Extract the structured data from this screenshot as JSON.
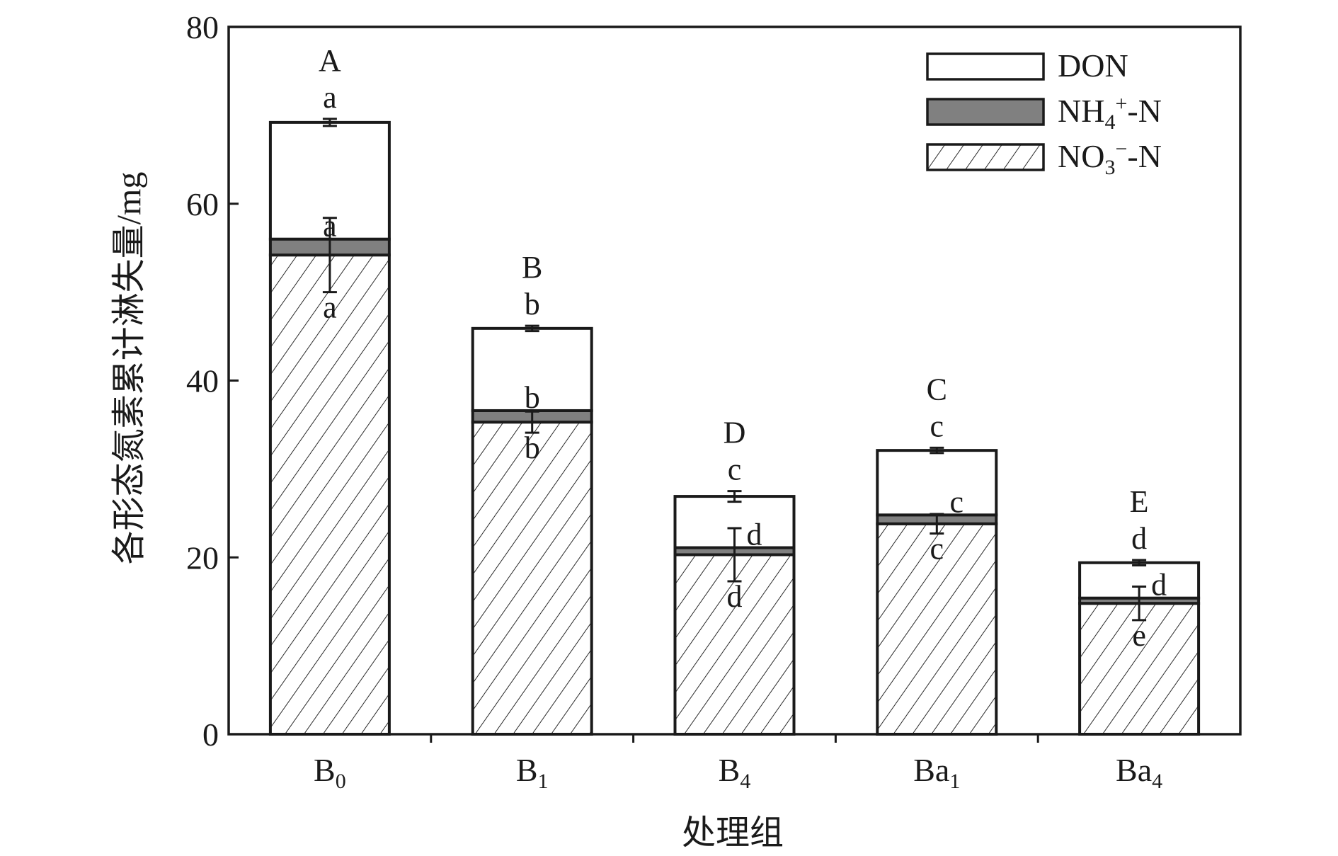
{
  "chart_data": {
    "type": "bar",
    "stacked": true,
    "xlabel": "处理组",
    "ylabel": "各形态氮素累计淋失量/mg",
    "ylim": [
      0,
      80
    ],
    "yticks": [
      0,
      20,
      40,
      60,
      80
    ],
    "grid": false,
    "legend_position": "top-right",
    "categories": [
      {
        "base": "B",
        "sub": "0"
      },
      {
        "base": "B",
        "sub": "1"
      },
      {
        "base": "B",
        "sub": "4"
      },
      {
        "base": "Ba",
        "sub": "1"
      },
      {
        "base": "Ba",
        "sub": "4"
      }
    ],
    "series": [
      {
        "key": "no3",
        "legend": {
          "pre": "NO",
          "sub": "3",
          "sup": "−",
          "post": "-N"
        },
        "fill": "hatch",
        "values": [
          54.2,
          35.3,
          20.3,
          23.8,
          14.8
        ],
        "error": [
          4.2,
          1.2,
          3.0,
          1.1,
          1.9
        ],
        "letters": [
          "a",
          "b",
          "d",
          "c",
          "e"
        ]
      },
      {
        "key": "nh4",
        "legend": {
          "pre": "NH",
          "sub": "4",
          "sup": "+",
          "post": "-N"
        },
        "fill": "#808080",
        "values": [
          1.8,
          1.3,
          0.8,
          1.0,
          0.6
        ],
        "letters": [
          "a",
          "b",
          "d",
          "c",
          "d"
        ]
      },
      {
        "key": "don",
        "legend": {
          "pre": "DON",
          "sub": "",
          "sup": "",
          "post": ""
        },
        "fill": "#ffffff",
        "values": [
          13.2,
          9.3,
          5.8,
          7.3,
          4.0
        ],
        "error": [
          0.4,
          0.3,
          0.6,
          0.3,
          0.3
        ],
        "letters": [
          "a",
          "b",
          "c",
          "c",
          "d"
        ]
      }
    ],
    "total_letters": [
      "A",
      "B",
      "D",
      "C",
      "E"
    ]
  }
}
